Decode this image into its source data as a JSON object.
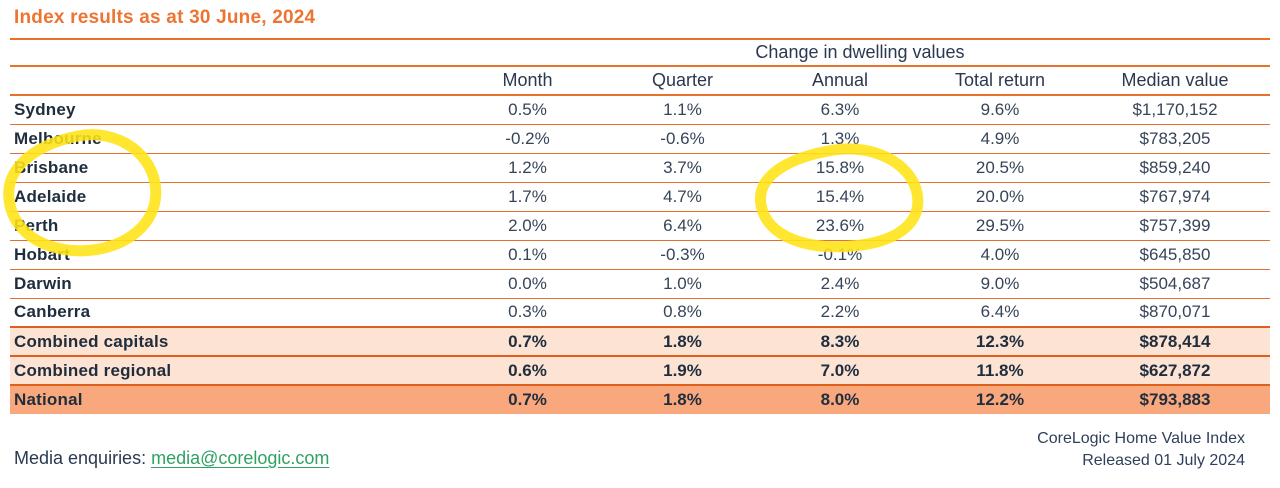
{
  "title": "Index results as at 30 June, 2024",
  "chart_data": {
    "type": "table",
    "title": "Index results as at 30 June, 2024",
    "group_header": "Change in dwelling values",
    "columns": [
      "Month",
      "Quarter",
      "Annual",
      "Total return",
      "Median value"
    ],
    "rows": [
      {
        "label": "Sydney",
        "values": [
          "0.5%",
          "1.1%",
          "6.3%",
          "9.6%",
          "$1,170,152"
        ],
        "emphasis": "plain"
      },
      {
        "label": "Melbourne",
        "values": [
          "-0.2%",
          "-0.6%",
          "1.3%",
          "4.9%",
          "$783,205"
        ],
        "emphasis": "plain"
      },
      {
        "label": "Brisbane",
        "values": [
          "1.2%",
          "3.7%",
          "15.8%",
          "20.5%",
          "$859,240"
        ],
        "emphasis": "plain"
      },
      {
        "label": "Adelaide",
        "values": [
          "1.7%",
          "4.7%",
          "15.4%",
          "20.0%",
          "$767,974"
        ],
        "emphasis": "plain"
      },
      {
        "label": "Perth",
        "values": [
          "2.0%",
          "6.4%",
          "23.6%",
          "29.5%",
          "$757,399"
        ],
        "emphasis": "plain"
      },
      {
        "label": "Hobart",
        "values": [
          "0.1%",
          "-0.3%",
          "-0.1%",
          "4.0%",
          "$645,850"
        ],
        "emphasis": "plain"
      },
      {
        "label": "Darwin",
        "values": [
          "0.0%",
          "1.0%",
          "2.4%",
          "9.0%",
          "$504,687"
        ],
        "emphasis": "plain"
      },
      {
        "label": "Canberra",
        "values": [
          "0.3%",
          "0.8%",
          "2.2%",
          "6.4%",
          "$870,071"
        ],
        "emphasis": "plain"
      },
      {
        "label": "Combined capitals",
        "values": [
          "0.7%",
          "1.8%",
          "8.3%",
          "12.3%",
          "$878,414"
        ],
        "emphasis": "subtotal"
      },
      {
        "label": "Combined regional",
        "values": [
          "0.6%",
          "1.9%",
          "7.0%",
          "11.8%",
          "$627,872"
        ],
        "emphasis": "subtotal"
      },
      {
        "label": "National",
        "values": [
          "0.7%",
          "1.8%",
          "8.0%",
          "12.2%",
          "$793,883"
        ],
        "emphasis": "total"
      }
    ]
  },
  "footer": {
    "media_label": "Media enquiries: ",
    "media_email": "media@corelogic.com",
    "source_line1": "CoreLogic Home Value Index",
    "source_line2": "Released 01 July 2024"
  },
  "annotations": {
    "marker_color": "#FFE414",
    "highlights": [
      "hand-drawn yellow marker ellipse around row labels Brisbane and Adelaide",
      "hand-drawn yellow marker ellipse around Annual values 15.8%, 15.4%, 23.6%"
    ]
  },
  "colors": {
    "title_orange": "#ED7431",
    "rule_orange": "#E8722C",
    "row_rule_orange": "#E4702F",
    "section_rule_orange": "#DD611C",
    "subtotal_bg": "#FCE3D3",
    "total_bg": "#F9A87D",
    "label_navy": "#1F2D3D",
    "value_slate": "#374458",
    "email_green": "#2FA263"
  }
}
